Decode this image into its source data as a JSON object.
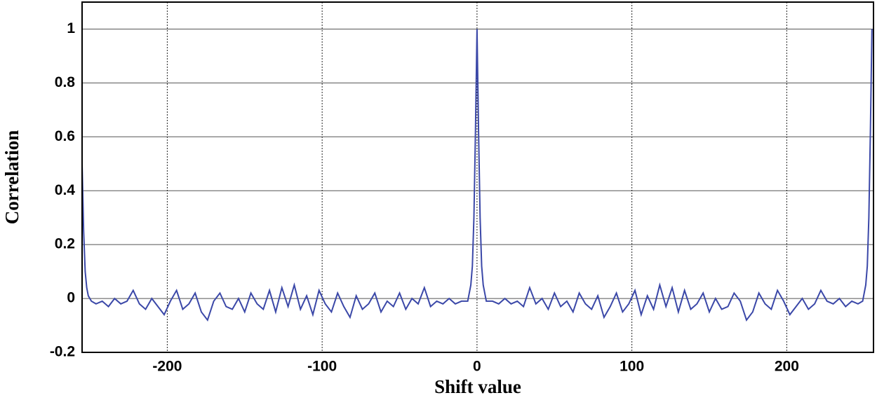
{
  "chart_data": {
    "type": "line",
    "xlabel": "Shift value",
    "ylabel": "Correlation",
    "xlim": [
      -255,
      256
    ],
    "ylim": [
      -0.2,
      1.1
    ],
    "xticks": [
      -200,
      -100,
      0,
      100,
      200
    ],
    "yticks": [
      -0.2,
      0,
      0.2,
      0.4,
      0.6,
      0.8,
      1
    ],
    "grid": true,
    "x": [
      -255,
      -254,
      -253,
      -252,
      -251,
      -249,
      -246,
      -242,
      -238,
      -234,
      -230,
      -226,
      -222,
      -218,
      -214,
      -210,
      -206,
      -202,
      -198,
      -194,
      -190,
      -186,
      -182,
      -178,
      -174,
      -170,
      -166,
      -162,
      -158,
      -154,
      -150,
      -146,
      -142,
      -138,
      -134,
      -130,
      -126,
      -122,
      -118,
      -114,
      -110,
      -106,
      -102,
      -98,
      -94,
      -90,
      -86,
      -82,
      -78,
      -74,
      -70,
      -66,
      -62,
      -58,
      -54,
      -50,
      -46,
      -42,
      -38,
      -34,
      -30,
      -26,
      -22,
      -18,
      -14,
      -10,
      -6,
      -4,
      -3,
      -2,
      -1,
      0,
      1,
      2,
      3,
      4,
      6,
      10,
      14,
      18,
      22,
      26,
      30,
      34,
      38,
      42,
      46,
      50,
      54,
      58,
      62,
      66,
      70,
      74,
      78,
      82,
      86,
      90,
      94,
      98,
      102,
      106,
      110,
      114,
      118,
      122,
      126,
      130,
      134,
      138,
      142,
      146,
      150,
      154,
      158,
      162,
      166,
      170,
      174,
      178,
      182,
      186,
      190,
      194,
      198,
      202,
      206,
      210,
      214,
      218,
      222,
      226,
      230,
      234,
      238,
      242,
      246,
      249,
      251,
      252,
      253,
      254,
      255
    ],
    "series": [
      {
        "color": "#3b48a8",
        "values": [
          0.5,
          0.25,
          0.1,
          0.04,
          0.01,
          -0.01,
          -0.02,
          -0.01,
          -0.03,
          0.0,
          -0.02,
          -0.01,
          0.03,
          -0.02,
          -0.04,
          0.0,
          -0.03,
          -0.06,
          -0.01,
          0.03,
          -0.04,
          -0.02,
          0.02,
          -0.05,
          -0.08,
          -0.01,
          0.02,
          -0.03,
          -0.04,
          0.0,
          -0.05,
          0.02,
          -0.02,
          -0.04,
          0.03,
          -0.05,
          0.04,
          -0.03,
          0.05,
          -0.04,
          0.01,
          -0.06,
          0.03,
          -0.02,
          -0.05,
          0.02,
          -0.03,
          -0.07,
          0.01,
          -0.04,
          -0.02,
          0.02,
          -0.05,
          -0.01,
          -0.03,
          0.02,
          -0.04,
          0.0,
          -0.02,
          0.04,
          -0.03,
          -0.01,
          -0.02,
          0.0,
          -0.02,
          -0.01,
          -0.01,
          0.05,
          0.12,
          0.3,
          0.62,
          1.0,
          0.62,
          0.3,
          0.12,
          0.05,
          -0.01,
          -0.01,
          -0.02,
          0.0,
          -0.02,
          -0.01,
          -0.03,
          0.04,
          -0.02,
          0.0,
          -0.04,
          0.02,
          -0.03,
          -0.01,
          -0.05,
          0.02,
          -0.02,
          -0.04,
          0.01,
          -0.07,
          -0.03,
          0.02,
          -0.05,
          -0.02,
          0.03,
          -0.06,
          0.01,
          -0.04,
          0.05,
          -0.03,
          0.04,
          -0.05,
          0.03,
          -0.04,
          -0.02,
          0.02,
          -0.05,
          0.0,
          -0.04,
          -0.03,
          0.02,
          -0.01,
          -0.08,
          -0.05,
          0.02,
          -0.02,
          -0.04,
          0.03,
          -0.01,
          -0.06,
          -0.03,
          0.0,
          -0.04,
          -0.02,
          0.03,
          -0.01,
          -0.02,
          0.0,
          -0.03,
          -0.01,
          -0.02,
          -0.01,
          0.05,
          0.12,
          0.3,
          0.62,
          1.0
        ]
      }
    ]
  }
}
